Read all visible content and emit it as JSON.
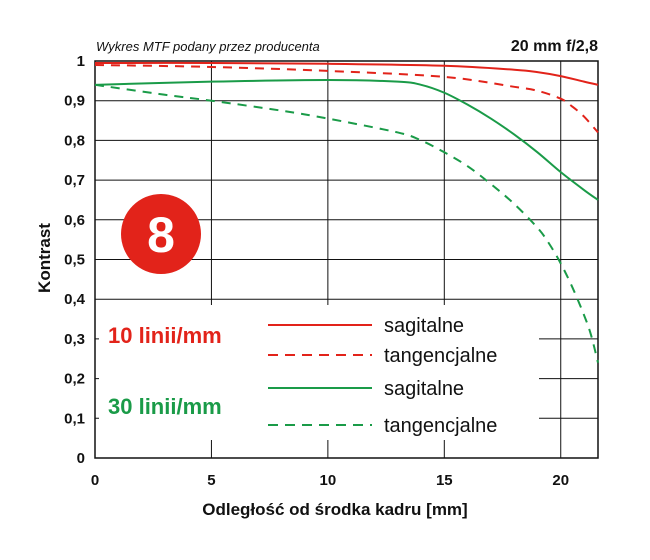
{
  "chart_data": {
    "type": "line",
    "subtitle": "Wykres MTF podany przez producenta",
    "title": "20 mm f/2,8",
    "xlabel": "Odległość od środka kadru [mm]",
    "ylabel": "Kontrast",
    "xlim": [
      0,
      21.6
    ],
    "ylim": [
      0,
      1
    ],
    "x_ticks": [
      "0",
      "5",
      "10",
      "15",
      "20"
    ],
    "y_ticks": [
      "0",
      "0,1",
      "0,2",
      "0,3",
      "0,4",
      "0,5",
      "0,6",
      "0,7",
      "0,8",
      "0,9",
      "1"
    ],
    "badge": "8",
    "legend": {
      "groups": [
        {
          "label": "10 linii/mm",
          "color": "#e2231a",
          "entries": [
            "sagitalne",
            "tangencjalne"
          ]
        },
        {
          "label": "30 linii/mm",
          "color": "#1a9b48",
          "entries": [
            "sagitalne",
            "tangencjalne"
          ]
        }
      ]
    },
    "series": [
      {
        "group": "10 linii/mm",
        "type": "sagitalne",
        "color": "#e2231a",
        "dash": false,
        "x": [
          0,
          5,
          10,
          15,
          18,
          19,
          20,
          21,
          21.6
        ],
        "y": [
          0.995,
          0.995,
          0.993,
          0.988,
          0.978,
          0.972,
          0.962,
          0.948,
          0.94
        ]
      },
      {
        "group": "10 linii/mm",
        "type": "tangencjalne",
        "color": "#e2231a",
        "dash": true,
        "x": [
          0,
          5,
          10,
          15,
          18,
          19,
          20,
          20.5,
          21,
          21.6
        ],
        "y": [
          0.99,
          0.985,
          0.975,
          0.96,
          0.935,
          0.925,
          0.905,
          0.885,
          0.86,
          0.82
        ]
      },
      {
        "group": "30 linii/mm",
        "type": "sagitalne",
        "color": "#1a9b48",
        "dash": false,
        "x": [
          0,
          5,
          10,
          13,
          14,
          15,
          16,
          17,
          18,
          19,
          20,
          21,
          21.6
        ],
        "y": [
          0.94,
          0.948,
          0.952,
          0.948,
          0.94,
          0.92,
          0.89,
          0.855,
          0.815,
          0.77,
          0.72,
          0.675,
          0.65
        ]
      },
      {
        "group": "30 linii/mm",
        "type": "tangencjalne",
        "color": "#1a9b48",
        "dash": true,
        "x": [
          0,
          3,
          5,
          8,
          10,
          13,
          14,
          15,
          16,
          17,
          18,
          19,
          19.5,
          20,
          20.5,
          21,
          21.3,
          21.6
        ],
        "y": [
          0.94,
          0.915,
          0.9,
          0.875,
          0.855,
          0.82,
          0.8,
          0.77,
          0.735,
          0.69,
          0.64,
          0.58,
          0.54,
          0.49,
          0.43,
          0.36,
          0.31,
          0.24
        ]
      }
    ]
  }
}
